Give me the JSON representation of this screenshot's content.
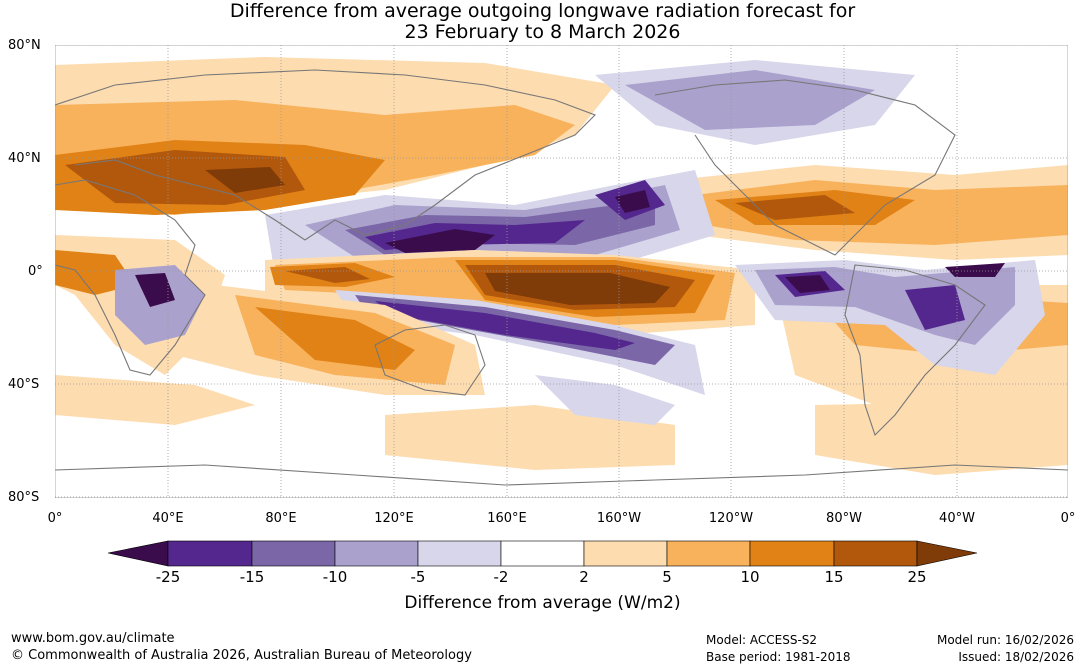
{
  "title": {
    "line1": "Difference from average outgoing longwave radiation forecast for",
    "line2": "23 February to 8 March 2026"
  },
  "map": {
    "latitude_labels": [
      "80°N",
      "40°N",
      "0°",
      "40°S",
      "80°S"
    ],
    "longitude_labels": [
      "0°",
      "40°E",
      "80°E",
      "120°E",
      "160°E",
      "160°W",
      "120°W",
      "80°W",
      "40°W",
      "0°"
    ],
    "colors": {
      "lt_-25": "#3b0c4c",
      "-25_-15": "#54278f",
      "-15_-10": "#7b67a8",
      "-10_-5": "#aaa1cd",
      "-5_-2": "#d7d6ea",
      "-2_2": "#ffffff",
      "2_5": "#fddcb0",
      "5_10": "#f8b25c",
      "10_15": "#e08216",
      "15_25": "#b2580c",
      "gt_25": "#7f3b08",
      "coast": "#777777",
      "grid": "#999999"
    }
  },
  "colorbar": {
    "ticks": [
      "-25",
      "-15",
      "-10",
      "-5",
      "-2",
      "2",
      "5",
      "10",
      "15",
      "25"
    ],
    "label": "Difference from average (W/m2)"
  },
  "footer": {
    "website": "www.bom.gov.au/climate",
    "copyright": "© Commonwealth of Australia 2026, Australian Bureau of Meteorology",
    "model": "Model: ACCESS-S2",
    "base_period": "Base period: 1981-2018",
    "model_run": "Model run: 16/02/2026",
    "issued": "Issued: 18/02/2026"
  }
}
